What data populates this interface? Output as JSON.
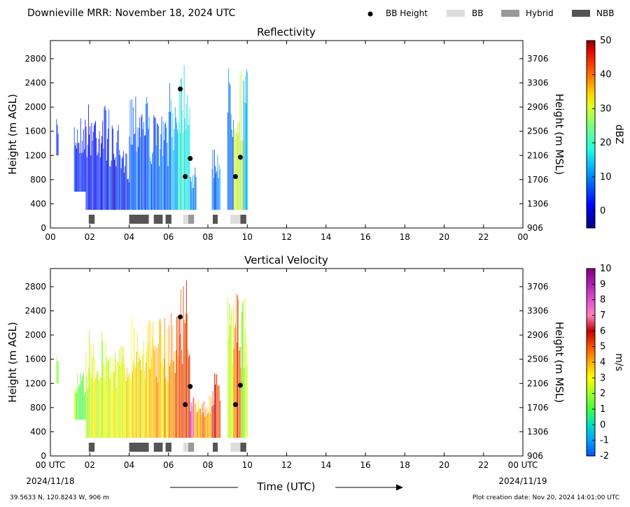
{
  "header": {
    "title": "Downieville MRR:  November 18, 2024 UTC",
    "legend": [
      {
        "label": "BB Height",
        "symbol": "dot",
        "color": "#000000"
      },
      {
        "label": "BB",
        "symbol": "box",
        "color": "#dddddd"
      },
      {
        "label": "Hybrid",
        "symbol": "box",
        "color": "#999999"
      },
      {
        "label": "NBB",
        "symbol": "box",
        "color": "#555555"
      }
    ]
  },
  "footer": {
    "location": "39.5633 N, 120.8243 W, 906 m",
    "created": "Plot creation date: Nov 20, 2024 14:01:00 UTC",
    "time_label": "Time (UTC)",
    "start_date": "2024/11/18",
    "end_date": "2024/11/19"
  },
  "chart_data": [
    {
      "type": "heatmap",
      "title": "Reflectivity",
      "ylabel": "Height (m AGL)",
      "ylabel_right": "Height (m MSL)",
      "x_ticks": [
        "00",
        "02",
        "04",
        "06",
        "08",
        "10",
        "12",
        "14",
        "16",
        "18",
        "20",
        "22",
        "00"
      ],
      "y_ticks": [
        "0",
        "400",
        "800",
        "1200",
        "1600",
        "2000",
        "2400",
        "2800"
      ],
      "y_ticks_right": [
        "906",
        "1306",
        "1706",
        "2106",
        "2506",
        "2906",
        "3306",
        "3706"
      ],
      "xlim": [
        0,
        24
      ],
      "ylim": [
        0,
        3100
      ],
      "colorbar": {
        "label": "dBZ",
        "ticks": [
          "0",
          "10",
          "20",
          "30",
          "40",
          "50"
        ],
        "range": [
          -5,
          50
        ]
      },
      "bb_height_points": [
        [
          6.6,
          2300
        ],
        [
          6.85,
          850
        ],
        [
          7.1,
          1150
        ],
        [
          9.4,
          850
        ],
        [
          9.65,
          1170
        ]
      ],
      "bright_band_markers": [
        {
          "start": 1.95,
          "end": 2.25,
          "class": "NBB"
        },
        {
          "start": 4.0,
          "end": 5.0,
          "class": "NBB"
        },
        {
          "start": 5.25,
          "end": 5.7,
          "class": "NBB"
        },
        {
          "start": 5.85,
          "end": 6.15,
          "class": "NBB"
        },
        {
          "start": 6.75,
          "end": 7.0,
          "class": "BB"
        },
        {
          "start": 7.0,
          "end": 7.3,
          "class": "Hybrid"
        },
        {
          "start": 8.25,
          "end": 8.5,
          "class": "NBB"
        },
        {
          "start": 9.15,
          "end": 9.65,
          "class": "BB"
        },
        {
          "start": 9.65,
          "end": 9.95,
          "class": "NBB"
        }
      ],
      "segments": [
        {
          "start": 0.3,
          "end": 0.4,
          "top": 1800,
          "bottom": 1200,
          "value": 2
        },
        {
          "start": 1.2,
          "end": 1.8,
          "top": 1900,
          "bottom": 600,
          "value": 3
        },
        {
          "start": 1.8,
          "end": 3.0,
          "top": 2100,
          "bottom": 300,
          "value": 3
        },
        {
          "start": 3.0,
          "end": 3.5,
          "top": 1700,
          "bottom": 300,
          "value": 2
        },
        {
          "start": 3.5,
          "end": 4.0,
          "top": 1300,
          "bottom": 300,
          "value": 2
        },
        {
          "start": 4.0,
          "end": 5.0,
          "top": 2400,
          "bottom": 300,
          "value": 7
        },
        {
          "start": 5.0,
          "end": 6.0,
          "top": 1900,
          "bottom": 300,
          "value": 8
        },
        {
          "start": 6.0,
          "end": 6.5,
          "top": 2400,
          "bottom": 300,
          "value": 11
        },
        {
          "start": 6.5,
          "end": 7.1,
          "top": 3000,
          "bottom": 300,
          "value": 17
        },
        {
          "start": 7.1,
          "end": 7.4,
          "top": 1000,
          "bottom": 300,
          "value": 10
        },
        {
          "start": 8.2,
          "end": 8.6,
          "top": 1400,
          "bottom": 300,
          "value": 9
        },
        {
          "start": 9.0,
          "end": 9.3,
          "top": 2700,
          "bottom": 300,
          "value": 9
        },
        {
          "start": 9.3,
          "end": 9.8,
          "top": 2700,
          "bottom": 300,
          "value": 30
        },
        {
          "start": 9.8,
          "end": 10.0,
          "top": 2700,
          "bottom": 300,
          "value": 15
        }
      ]
    },
    {
      "type": "heatmap",
      "title": "Vertical Velocity",
      "ylabel": "Height (m AGL)",
      "ylabel_right": "Height (m MSL)",
      "x_ticks": [
        "00 UTC",
        "02",
        "04",
        "06",
        "08",
        "10",
        "12",
        "14",
        "16",
        "18",
        "20",
        "22",
        "00 UTC"
      ],
      "y_ticks": [
        "0",
        "400",
        "800",
        "1200",
        "1600",
        "2000",
        "2400",
        "2800"
      ],
      "y_ticks_right": [
        "906",
        "1306",
        "1706",
        "2106",
        "2506",
        "2906",
        "3306",
        "3706"
      ],
      "xlim": [
        0,
        24
      ],
      "ylim": [
        0,
        3100
      ],
      "colorbar": {
        "label": "m/s",
        "ticks": [
          "-2",
          "-1",
          "0",
          "1",
          "2",
          "3",
          "4",
          "5",
          "6",
          "7",
          "8",
          "9",
          "10"
        ],
        "range": [
          -2,
          10
        ]
      },
      "bb_height_points": [
        [
          6.6,
          2300
        ],
        [
          6.85,
          850
        ],
        [
          7.1,
          1150
        ],
        [
          9.4,
          850
        ],
        [
          9.65,
          1170
        ]
      ],
      "bright_band_markers": [
        {
          "start": 1.95,
          "end": 2.25,
          "class": "NBB"
        },
        {
          "start": 4.0,
          "end": 5.0,
          "class": "NBB"
        },
        {
          "start": 5.25,
          "end": 5.7,
          "class": "NBB"
        },
        {
          "start": 5.85,
          "end": 6.15,
          "class": "NBB"
        },
        {
          "start": 6.75,
          "end": 7.0,
          "class": "BB"
        },
        {
          "start": 7.0,
          "end": 7.3,
          "class": "Hybrid"
        },
        {
          "start": 8.25,
          "end": 8.5,
          "class": "NBB"
        },
        {
          "start": 9.15,
          "end": 9.65,
          "class": "BB"
        },
        {
          "start": 9.65,
          "end": 9.95,
          "class": "NBB"
        }
      ],
      "segments": [
        {
          "start": 0.3,
          "end": 0.4,
          "top": 1800,
          "bottom": 1200,
          "value": 1.5
        },
        {
          "start": 1.2,
          "end": 1.8,
          "top": 1400,
          "bottom": 600,
          "value": 1.5
        },
        {
          "start": 1.8,
          "end": 3.0,
          "top": 2100,
          "bottom": 300,
          "value": 2.5
        },
        {
          "start": 3.0,
          "end": 4.0,
          "top": 1900,
          "bottom": 300,
          "value": 3.0
        },
        {
          "start": 4.0,
          "end": 5.0,
          "top": 2400,
          "bottom": 300,
          "value": 3.3
        },
        {
          "start": 5.0,
          "end": 6.0,
          "top": 2300,
          "bottom": 300,
          "value": 3.8
        },
        {
          "start": 6.0,
          "end": 6.5,
          "top": 2500,
          "bottom": 300,
          "value": 4.5
        },
        {
          "start": 6.5,
          "end": 7.1,
          "top": 3000,
          "bottom": 300,
          "value": 5.5
        },
        {
          "start": 7.1,
          "end": 7.3,
          "top": 1000,
          "bottom": 300,
          "value": 8.0
        },
        {
          "start": 7.3,
          "end": 8.2,
          "top": 1000,
          "bottom": 300,
          "value": 4.0
        },
        {
          "start": 8.2,
          "end": 8.6,
          "top": 1400,
          "bottom": 300,
          "value": 5.5
        },
        {
          "start": 9.0,
          "end": 9.3,
          "top": 2700,
          "bottom": 300,
          "value": 2.5
        },
        {
          "start": 9.3,
          "end": 9.7,
          "top": 2700,
          "bottom": 300,
          "value": 5.0
        },
        {
          "start": 9.7,
          "end": 10.0,
          "top": 2800,
          "bottom": 300,
          "value": 2.0
        }
      ]
    }
  ]
}
